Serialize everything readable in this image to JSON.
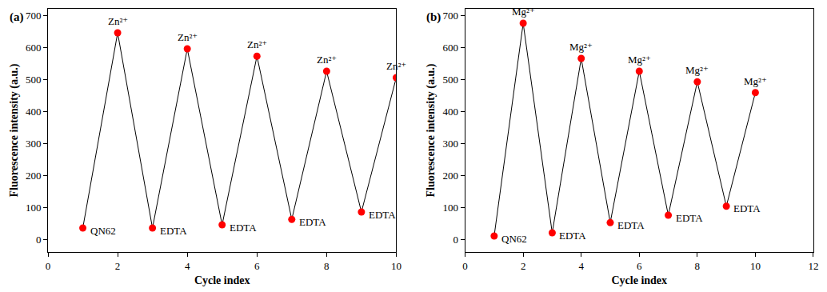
{
  "chart_data": [
    {
      "type": "line",
      "title": "(a)",
      "x_label": "Cycle index",
      "y_label": "Fluorescence intensity (a.u.)",
      "x": [
        1,
        2,
        3,
        4,
        5,
        6,
        7,
        8,
        9,
        10
      ],
      "values": [
        35,
        645,
        35,
        595,
        45,
        572,
        62,
        525,
        85,
        505
      ],
      "color": "#ff0000",
      "marker": "circle",
      "xlim": [
        0,
        10
      ],
      "xticks": [
        0,
        2,
        4,
        6,
        8,
        10
      ],
      "ylim": [
        -40,
        720
      ],
      "yticks": [
        0,
        100,
        200,
        300,
        400,
        500,
        600,
        700
      ],
      "grid": false,
      "annotations": [
        {
          "x": 1,
          "text": "QN62"
        },
        {
          "x": 2,
          "text": "Zn²⁺"
        },
        {
          "x": 3,
          "text": "EDTA"
        },
        {
          "x": 4,
          "text": "Zn²⁺"
        },
        {
          "x": 5,
          "text": "EDTA"
        },
        {
          "x": 6,
          "text": "Zn²⁺"
        },
        {
          "x": 7,
          "text": "EDTA"
        },
        {
          "x": 8,
          "text": "Zn²⁺"
        },
        {
          "x": 9,
          "text": "EDTA"
        },
        {
          "x": 10,
          "text": "Zn²⁺"
        }
      ]
    },
    {
      "type": "line",
      "title": "(b)",
      "x_label": "Cycle index",
      "y_label": "Fluorescence intensity (a.u.)",
      "x": [
        1,
        2,
        3,
        4,
        5,
        6,
        7,
        8,
        9,
        10
      ],
      "values": [
        10,
        675,
        20,
        565,
        52,
        525,
        75,
        492,
        103,
        458
      ],
      "color": "#ff0000",
      "marker": "circle",
      "xlim": [
        0,
        12
      ],
      "xticks": [
        0,
        2,
        4,
        6,
        8,
        10,
        12
      ],
      "ylim": [
        -40,
        720
      ],
      "yticks": [
        0,
        100,
        200,
        300,
        400,
        500,
        600,
        700
      ],
      "grid": false,
      "annotations": [
        {
          "x": 1,
          "text": "QN62"
        },
        {
          "x": 2,
          "text": "Mg²⁺"
        },
        {
          "x": 3,
          "text": "EDTA"
        },
        {
          "x": 4,
          "text": "Mg²⁺"
        },
        {
          "x": 5,
          "text": "EDTA"
        },
        {
          "x": 6,
          "text": "Mg²⁺"
        },
        {
          "x": 7,
          "text": "EDTA"
        },
        {
          "x": 8,
          "text": "Mg²⁺"
        },
        {
          "x": 9,
          "text": "EDTA"
        },
        {
          "x": 10,
          "text": "Mg²⁺"
        }
      ]
    }
  ]
}
